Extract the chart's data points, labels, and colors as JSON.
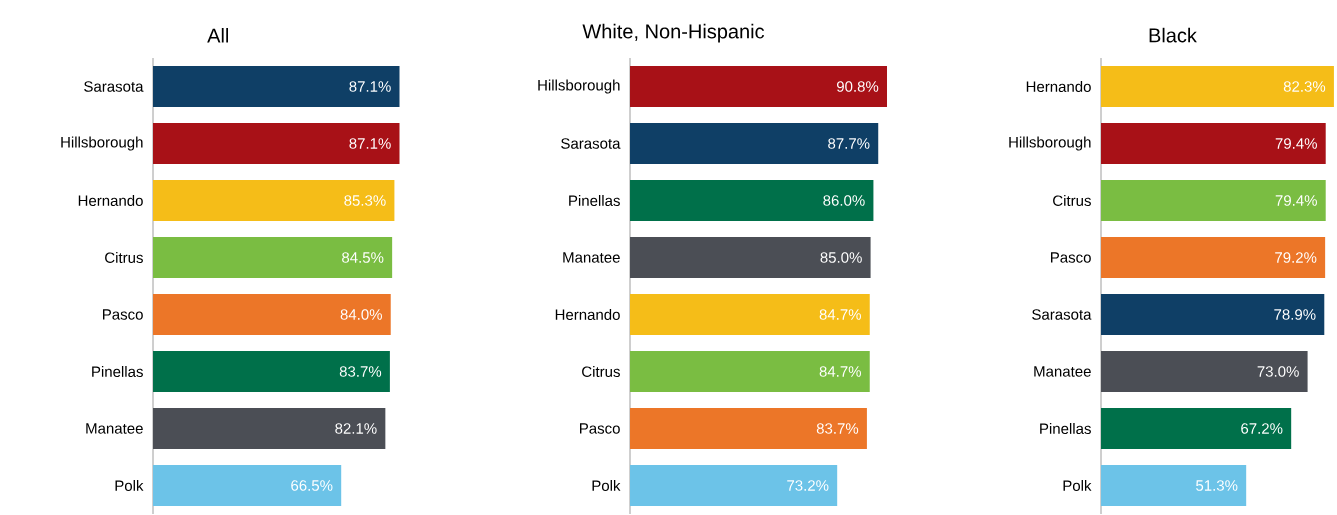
{
  "chart_data": [
    {
      "type": "bar",
      "orientation": "horizontal",
      "title": "All",
      "categories": [
        "Sarasota",
        "Hillsborough",
        "Hernando",
        "Citrus",
        "Pasco",
        "Pinellas",
        "Manatee",
        "Polk"
      ],
      "values": [
        87.1,
        87.1,
        85.3,
        84.5,
        84.0,
        83.7,
        82.1,
        66.5
      ],
      "value_labels": [
        "87.1%",
        "87.1%",
        "85.3%",
        "84.5%",
        "84.0%",
        "83.7%",
        "82.1%",
        "66.5%"
      ],
      "colors": [
        "#0f3f66",
        "#a81117",
        "#f5bd18",
        "#7abd42",
        "#ec7628",
        "#00704a",
        "#4b4e55",
        "#6cc3e8"
      ]
    },
    {
      "type": "bar",
      "orientation": "horizontal",
      "title": "White, Non-Hispanic",
      "categories": [
        "Hillsborough",
        "Sarasota",
        "Pinellas",
        "Manatee",
        "Hernando",
        "Citrus",
        "Pasco",
        "Polk"
      ],
      "values": [
        90.8,
        87.7,
        86.0,
        85.0,
        84.7,
        84.7,
        83.7,
        73.2
      ],
      "value_labels": [
        "90.8%",
        "87.7%",
        "86.0%",
        "85.0%",
        "84.7%",
        "84.7%",
        "83.7%",
        "73.2%"
      ],
      "colors": [
        "#a81117",
        "#0f3f66",
        "#00704a",
        "#4b4e55",
        "#f5bd18",
        "#7abd42",
        "#ec7628",
        "#6cc3e8"
      ]
    },
    {
      "type": "bar",
      "orientation": "horizontal",
      "title": "Black",
      "categories": [
        "Hernando",
        "Hillsborough",
        "Citrus",
        "Pasco",
        "Sarasota",
        "Manatee",
        "Pinellas",
        "Polk"
      ],
      "values": [
        82.3,
        79.4,
        79.4,
        79.2,
        78.9,
        73.0,
        67.2,
        51.3
      ],
      "value_labels": [
        "82.3%",
        "79.4%",
        "79.4%",
        "79.2%",
        "78.9%",
        "73.0%",
        "67.2%",
        "51.3%"
      ],
      "colors": [
        "#f5bd18",
        "#a81117",
        "#7abd42",
        "#ec7628",
        "#0f3f66",
        "#4b4e55",
        "#00704a",
        "#6cc3e8"
      ]
    }
  ]
}
